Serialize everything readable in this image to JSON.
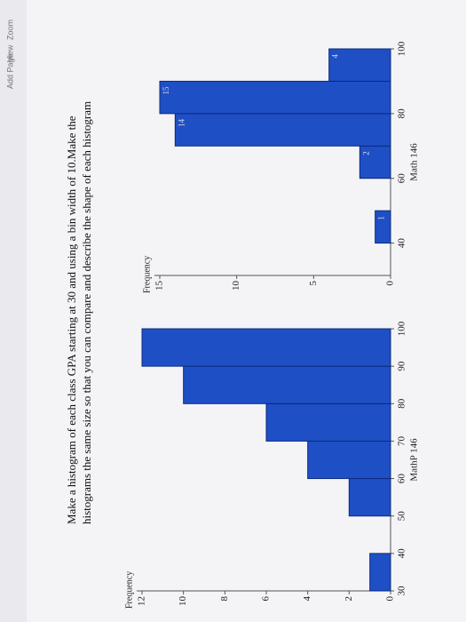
{
  "toolbar": [
    "View",
    "Zoom",
    "Add Page"
  ],
  "instructions": [
    "Make a histogram of each class GPA starting at 30 and using a bin width of 10.Make the",
    "histograms the same size so that you can compare and describe the shape of each histogram"
  ],
  "chart_data": [
    {
      "type": "histogram",
      "xlabel": "MathP 146",
      "ylabel": "Frequency",
      "color": "#1f4fc4",
      "bins": [
        30,
        40,
        50,
        60,
        70,
        80,
        90,
        100
      ],
      "values": [
        1,
        0,
        2,
        4,
        6,
        10,
        12
      ],
      "xlim": [
        30,
        100
      ],
      "xticks": [
        30,
        40,
        50,
        60,
        70,
        80,
        90,
        100
      ],
      "ylim": [
        0,
        12
      ],
      "yticks": [
        0,
        2,
        4,
        6,
        8,
        10,
        12
      ],
      "data_labels": false
    },
    {
      "type": "histogram",
      "xlabel": "Math 146",
      "ylabel": "Frequency",
      "color": "#1f4fc4",
      "bins": [
        30,
        40,
        50,
        60,
        70,
        80,
        90,
        100
      ],
      "values": [
        0,
        1,
        0,
        2,
        14,
        15,
        4
      ],
      "xlim": [
        30,
        100
      ],
      "xticks": [
        40,
        60,
        80,
        100
      ],
      "ylim": [
        0,
        15
      ],
      "yticks": [
        0,
        5,
        10,
        15
      ],
      "data_labels": true
    }
  ]
}
